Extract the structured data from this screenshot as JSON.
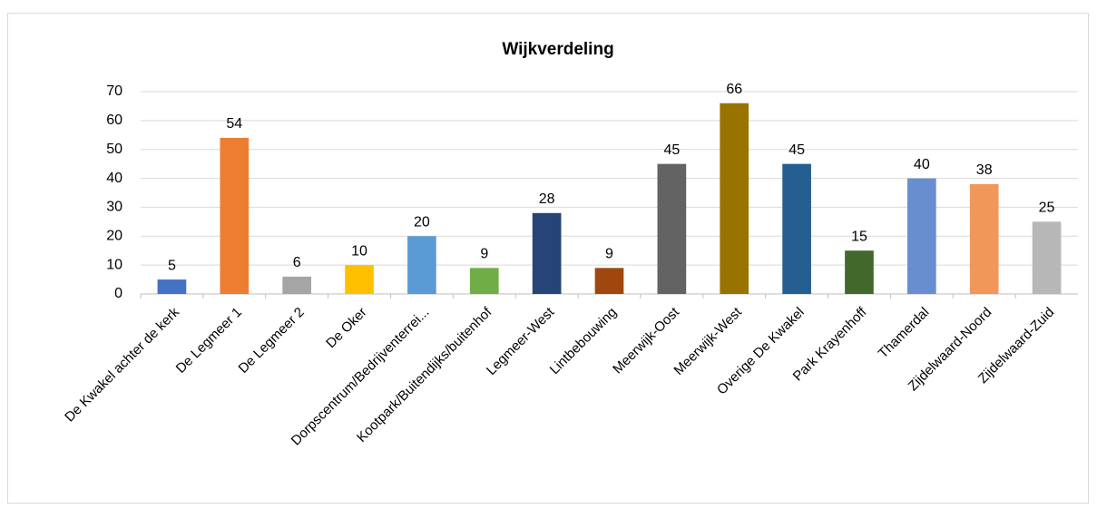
{
  "chart_data": {
    "type": "bar",
    "title": "Wijkverdeling",
    "categories": [
      "De Kwakel achter de kerk",
      "De Legmeer 1",
      "De Legmeer 2",
      "De Oker",
      "Dorpscentrum/Bedrijventerrei...",
      "Kootpark/Buitendijks/buitenhof",
      "Legmeer-West",
      "Lintbebouwing",
      "Meerwijk-Oost",
      "Meerwijk-West",
      "Overige De Kwakel",
      "Park Krayenhoff",
      "Thamerdal",
      "Zijdelwaard-Noord",
      "Zijdelwaard-Zuid"
    ],
    "values": [
      5,
      54,
      6,
      10,
      20,
      9,
      28,
      9,
      45,
      66,
      45,
      15,
      40,
      38,
      25
    ],
    "colors": [
      "#4472c4",
      "#ed7d31",
      "#a5a5a5",
      "#ffc000",
      "#5b9bd5",
      "#70ad47",
      "#264478",
      "#9e480e",
      "#636363",
      "#997300",
      "#255e91",
      "#43682b",
      "#698ed0",
      "#f1975a",
      "#b7b7b7"
    ],
    "ylim": [
      0,
      70
    ],
    "yticks": [
      0,
      10,
      20,
      30,
      40,
      50,
      60,
      70
    ],
    "grid": true
  }
}
